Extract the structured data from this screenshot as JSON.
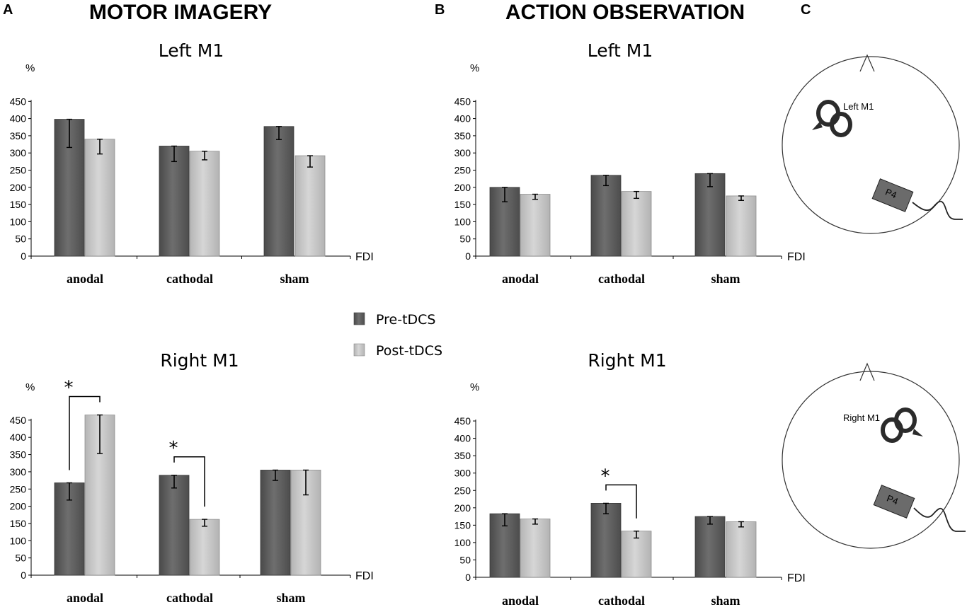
{
  "panels": [
    {
      "letter": "A",
      "title": "MOTOR IMAGERY"
    },
    {
      "letter": "B",
      "title": "ACTION OBSERVATION"
    },
    {
      "letter": "C"
    }
  ],
  "legend": {
    "pre": "Pre-tDCS",
    "post": "Post-tDCS"
  },
  "colors": {
    "pre": "#5a5a5a",
    "post": "#c2c2c2",
    "axis": "#000000"
  },
  "head_labels": {
    "top_coil": "Left M1",
    "bottom_coil": "Right M1",
    "electrode_top": "P4",
    "electrode_bottom": "P4"
  },
  "chart_data": [
    {
      "type": "bar",
      "panel": "A",
      "title": "Left  M1",
      "categories": [
        "anodal",
        "cathodal",
        "sham"
      ],
      "series": [
        {
          "name": "Pre-tDCS",
          "values": [
            398,
            320,
            377
          ],
          "errors": [
            82,
            45,
            38
          ]
        },
        {
          "name": "Post-tDCS",
          "values": [
            340,
            305,
            292
          ],
          "errors": [
            43,
            25,
            33
          ]
        }
      ],
      "ylabel": "%",
      "xlabel": "FDI",
      "ylim": [
        0,
        450
      ],
      "yticks": [
        0,
        50,
        100,
        150,
        200,
        250,
        300,
        350,
        400,
        450
      ],
      "significance": []
    },
    {
      "type": "bar",
      "panel": "B",
      "title": "Left M1",
      "categories": [
        "anodal",
        "cathodal",
        "sham"
      ],
      "series": [
        {
          "name": "Pre-tDCS",
          "values": [
            200,
            235,
            240
          ],
          "errors": [
            42,
            30,
            38
          ]
        },
        {
          "name": "Post-tDCS",
          "values": [
            180,
            188,
            175
          ],
          "errors": [
            15,
            20,
            13
          ]
        }
      ],
      "ylabel": "%",
      "xlabel": "FDI",
      "ylim": [
        0,
        450
      ],
      "yticks": [
        0,
        50,
        100,
        150,
        200,
        250,
        300,
        350,
        400,
        450
      ],
      "significance": []
    },
    {
      "type": "bar",
      "panel": "A",
      "title": "Right M1",
      "categories": [
        "anodal",
        "cathodal",
        "sham"
      ],
      "series": [
        {
          "name": "Pre-tDCS",
          "values": [
            268,
            290,
            305
          ],
          "errors": [
            50,
            37,
            30
          ]
        },
        {
          "name": "Post-tDCS",
          "values": [
            465,
            162,
            305
          ],
          "errors": [
            112,
            20,
            72
          ]
        }
      ],
      "ylabel": "%",
      "xlabel": "FDI",
      "ylim": [
        0,
        450
      ],
      "yticks": [
        0,
        50,
        100,
        150,
        200,
        250,
        300,
        350,
        400,
        450
      ],
      "significance": [
        {
          "category": "anodal",
          "label": "*"
        },
        {
          "category": "cathodal",
          "label": "*"
        }
      ]
    },
    {
      "type": "bar",
      "panel": "B",
      "title": "Right M1",
      "categories": [
        "anodal",
        "cathodal",
        "sham"
      ],
      "series": [
        {
          "name": "Pre-tDCS",
          "values": [
            183,
            213,
            175
          ],
          "errors": [
            35,
            30,
            22
          ]
        },
        {
          "name": "Post-tDCS",
          "values": [
            168,
            133,
            160
          ],
          "errors": [
            15,
            20,
            15
          ]
        }
      ],
      "ylabel": "%",
      "xlabel": "FDI",
      "ylim": [
        0,
        450
      ],
      "yticks": [
        0,
        50,
        100,
        150,
        200,
        250,
        300,
        350,
        400,
        450
      ],
      "significance": [
        {
          "category": "cathodal",
          "label": "*"
        }
      ]
    }
  ]
}
